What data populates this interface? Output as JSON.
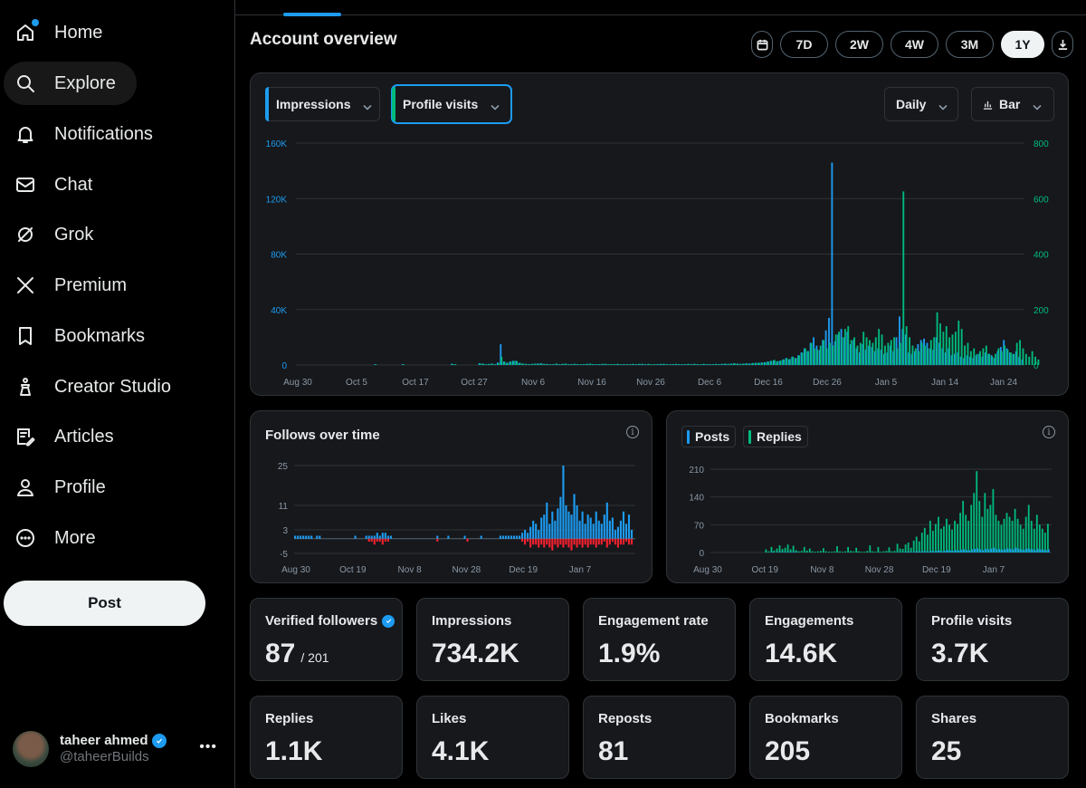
{
  "sidebar": {
    "items": [
      {
        "label": "Home",
        "icon": "home-icon"
      },
      {
        "label": "Explore",
        "icon": "search-icon"
      },
      {
        "label": "Notifications",
        "icon": "bell-icon"
      },
      {
        "label": "Chat",
        "icon": "mail-icon"
      },
      {
        "label": "Grok",
        "icon": "grok-icon"
      },
      {
        "label": "Premium",
        "icon": "x-logo-icon"
      },
      {
        "label": "Bookmarks",
        "icon": "bookmark-icon"
      },
      {
        "label": "Creator Studio",
        "icon": "creator-studio-icon"
      },
      {
        "label": "Articles",
        "icon": "article-icon"
      },
      {
        "label": "Profile",
        "icon": "person-icon"
      },
      {
        "label": "More",
        "icon": "more-circle-icon"
      }
    ],
    "post_label": "Post",
    "account": {
      "name": "taheer ahmed",
      "handle": "@taheerBuilds"
    }
  },
  "main": {
    "title": "Account overview",
    "ranges": [
      "7D",
      "2W",
      "4W",
      "3M",
      "1Y"
    ],
    "active_range": "1Y",
    "selectors": {
      "metric1": "Impressions",
      "metric2": "Profile visits",
      "interval": "Daily",
      "chart_type": "Bar"
    },
    "follows_title": "Follows over time",
    "posts_legend": {
      "posts": "Posts",
      "replies": "Replies"
    },
    "info_glyph": "i",
    "stats": [
      {
        "label": "Verified followers",
        "value": "87",
        "sub": "/ 201",
        "verified": true
      },
      {
        "label": "Impressions",
        "value": "734.2K"
      },
      {
        "label": "Engagement rate",
        "value": "1.9%"
      },
      {
        "label": "Engagements",
        "value": "14.6K"
      },
      {
        "label": "Profile visits",
        "value": "3.7K"
      },
      {
        "label": "Replies",
        "value": "1.1K"
      },
      {
        "label": "Likes",
        "value": "4.1K"
      },
      {
        "label": "Reposts",
        "value": "81"
      },
      {
        "label": "Bookmarks",
        "value": "205"
      },
      {
        "label": "Shares",
        "value": "25"
      }
    ]
  },
  "colors": {
    "accent_blue": "#1d9bf0",
    "accent_green": "#00ba7c",
    "negative_red": "#f4212e",
    "card_bg": "#16181c",
    "border": "#2f3336"
  },
  "chart_data": [
    {
      "id": "main",
      "type": "bar",
      "title": "",
      "x_tick_labels": [
        "Aug 30",
        "Oct 5",
        "Oct 17",
        "Oct 27",
        "Nov 6",
        "Nov 16",
        "Nov 26",
        "Dec 6",
        "Dec 16",
        "Dec 26",
        "Jan 5",
        "Jan 14",
        "Jan 24"
      ],
      "y_left_ticks": [
        "0",
        "40K",
        "80K",
        "120K",
        "160K"
      ],
      "y_left_range": [
        0,
        160000
      ],
      "y_right_ticks": [
        "0",
        "200",
        "400",
        "600",
        "800"
      ],
      "y_right_range": [
        0,
        800
      ],
      "series": [
        {
          "name": "Impressions",
          "axis": "left",
          "color": "#1d9bf0",
          "values": [
            0,
            0,
            0,
            0,
            0,
            0,
            0,
            0,
            0,
            0,
            0,
            0,
            0,
            0,
            0,
            0,
            0,
            0,
            0,
            0,
            0,
            0,
            0,
            0,
            500,
            0,
            0,
            0,
            0,
            0,
            0,
            0,
            0,
            600,
            0,
            0,
            0,
            0,
            0,
            0,
            0,
            0,
            0,
            0,
            0,
            0,
            0,
            0,
            0,
            900,
            500,
            0,
            0,
            0,
            0,
            0,
            0,
            0,
            1200,
            900,
            600,
            700,
            900,
            600,
            1800,
            15000,
            2500,
            1500,
            2500,
            3000,
            3000,
            1500,
            1000,
            800,
            600,
            700,
            900,
            1000,
            1200,
            800,
            700,
            600,
            500,
            900,
            600,
            700,
            900,
            500,
            600,
            800,
            600,
            500,
            600,
            700,
            900,
            600,
            500,
            600,
            700,
            800,
            500,
            600,
            600,
            700,
            500,
            600,
            600,
            500,
            700,
            600,
            700,
            800,
            600,
            700,
            500,
            600,
            600,
            800,
            700,
            600,
            500,
            600,
            700,
            600,
            500,
            600,
            700,
            600,
            800,
            600,
            500,
            700,
            600,
            600,
            500,
            700,
            600,
            800,
            900,
            700,
            1000,
            1200,
            1000,
            800,
            900,
            1200,
            1000,
            1400,
            1500,
            1600,
            1800,
            2000,
            2500,
            3000,
            3500,
            2500,
            3000,
            4000,
            5000,
            4000,
            6000,
            5000,
            7000,
            9000,
            12000,
            10000,
            16000,
            20000,
            14000,
            11000,
            18000,
            25000,
            34000,
            146000,
            17000,
            22000,
            26000,
            20000,
            24000,
            15000,
            18000,
            12000,
            9000,
            15000,
            11000,
            14000,
            13000,
            10000,
            12000,
            11000,
            8000,
            9000,
            14000,
            10000,
            20000,
            35000,
            26000,
            22000,
            9000,
            8000,
            10000,
            15000,
            18000,
            19000,
            16000,
            12000,
            11000,
            20000,
            16000,
            12000,
            9000,
            12000,
            7000,
            8000,
            9000,
            6000,
            5000,
            7000,
            6000,
            5000,
            7000,
            8000,
            6000,
            9000,
            8000,
            7000,
            5000,
            10000,
            13000,
            18000,
            12000,
            9000,
            8000,
            10000,
            6000,
            4000
          ]
        },
        {
          "name": "Profile visits",
          "axis": "right",
          "color": "#00ba7c",
          "values": [
            0,
            0,
            0,
            0,
            0,
            0,
            0,
            0,
            0,
            0,
            0,
            0,
            0,
            0,
            0,
            0,
            0,
            0,
            0,
            0,
            0,
            0,
            0,
            0,
            3,
            0,
            0,
            0,
            0,
            0,
            0,
            0,
            0,
            3,
            0,
            0,
            0,
            0,
            0,
            0,
            0,
            0,
            0,
            0,
            0,
            0,
            0,
            0,
            0,
            4,
            3,
            0,
            0,
            0,
            0,
            0,
            0,
            0,
            6,
            5,
            3,
            4,
            5,
            3,
            8,
            30,
            12,
            8,
            12,
            15,
            14,
            8,
            5,
            4,
            3,
            4,
            5,
            5,
            6,
            4,
            3,
            3,
            3,
            5,
            3,
            4,
            5,
            3,
            3,
            4,
            3,
            3,
            3,
            4,
            5,
            3,
            3,
            3,
            4,
            4,
            3,
            3,
            3,
            4,
            3,
            3,
            3,
            3,
            4,
            3,
            4,
            4,
            3,
            4,
            3,
            3,
            3,
            4,
            4,
            3,
            3,
            3,
            4,
            3,
            3,
            3,
            4,
            3,
            4,
            3,
            3,
            4,
            3,
            3,
            3,
            4,
            3,
            4,
            5,
            4,
            5,
            6,
            5,
            4,
            5,
            6,
            5,
            7,
            8,
            8,
            9,
            10,
            12,
            15,
            18,
            14,
            16,
            20,
            25,
            22,
            30,
            25,
            35,
            45,
            60,
            50,
            80,
            60,
            55,
            70,
            90,
            60,
            80,
            70,
            110,
            120,
            100,
            130,
            140,
            90,
            100,
            70,
            80,
            120,
            100,
            90,
            80,
            100,
            130,
            110,
            70,
            80,
            90,
            100,
            60,
            80,
            626,
            140,
            100,
            70,
            60,
            50,
            80,
            70,
            60,
            90,
            100,
            190,
            150,
            120,
            140,
            100,
            110,
            120,
            160,
            130,
            70,
            80,
            50,
            60,
            40,
            50,
            60,
            70,
            40,
            30,
            40,
            60,
            50,
            70,
            55,
            45,
            40,
            80,
            90,
            60,
            40,
            30,
            50,
            30,
            20
          ]
        }
      ]
    },
    {
      "id": "follows",
      "type": "bar",
      "title": "Follows over time",
      "x_tick_labels": [
        "Aug 30",
        "Oct 19",
        "Nov 8",
        "Nov 28",
        "Dec 19",
        "Jan 7"
      ],
      "y_ticks": [
        "-5",
        "3",
        "11",
        "25"
      ],
      "y_range": [
        -5,
        25
      ],
      "series": [
        {
          "name": "Follows",
          "color": "#1d9bf0",
          "values": [
            1,
            1,
            1,
            1,
            1,
            1,
            1,
            0,
            1,
            1,
            0,
            0,
            0,
            0,
            0,
            0,
            0,
            0,
            0,
            0,
            0,
            0,
            1,
            0,
            0,
            0,
            1,
            1,
            1,
            1,
            2,
            1,
            2,
            2,
            1,
            1,
            0,
            0,
            0,
            0,
            0,
            0,
            0,
            0,
            0,
            0,
            0,
            0,
            0,
            0,
            0,
            0,
            1,
            0,
            0,
            0,
            1,
            0,
            0,
            0,
            0,
            0,
            1,
            0,
            0,
            0,
            0,
            0,
            1,
            0,
            0,
            0,
            0,
            0,
            0,
            1,
            1,
            1,
            1,
            1,
            1,
            1,
            1,
            2,
            3,
            2,
            4,
            6,
            5,
            3,
            7,
            8,
            12,
            5,
            9,
            6,
            10,
            14,
            26,
            11,
            9,
            8,
            15,
            11,
            6,
            9,
            5,
            8,
            7,
            5,
            9,
            6,
            5,
            8,
            12,
            6,
            7,
            3,
            4,
            6,
            9,
            5,
            8,
            3
          ]
        },
        {
          "name": "Unfollows",
          "color": "#f4212e",
          "values": [
            0,
            0,
            0,
            0,
            0,
            0,
            0,
            0,
            0,
            0,
            0,
            0,
            0,
            0,
            0,
            0,
            0,
            0,
            0,
            0,
            0,
            0,
            0,
            0,
            0,
            0,
            0,
            -1,
            -1,
            -2,
            -1,
            -1,
            -2,
            -1,
            -1,
            0,
            0,
            0,
            0,
            0,
            0,
            0,
            0,
            0,
            0,
            0,
            0,
            0,
            0,
            0,
            0,
            0,
            -1,
            0,
            0,
            0,
            0,
            0,
            0,
            0,
            0,
            0,
            0,
            -1,
            0,
            0,
            0,
            0,
            0,
            0,
            0,
            0,
            0,
            0,
            0,
            0,
            0,
            0,
            0,
            0,
            0,
            0,
            0,
            -1,
            -2,
            -1,
            -3,
            -2,
            -2,
            -3,
            -2,
            -3,
            -2,
            -3,
            -4,
            -2,
            -3,
            -2,
            -3,
            -2,
            -3,
            -4,
            -2,
            -3,
            -2,
            -3,
            -2,
            -3,
            -2,
            -2,
            -3,
            -2,
            -2,
            -1,
            -3,
            -2,
            -1,
            -2,
            -3,
            -2,
            -2,
            -1,
            -2,
            -2
          ]
        }
      ]
    },
    {
      "id": "posts",
      "type": "bar",
      "title": "",
      "x_tick_labels": [
        "Aug 30",
        "Oct 19",
        "Nov 8",
        "Nov 28",
        "Dec 19",
        "Jan 7"
      ],
      "y_ticks": [
        "0",
        "70",
        "140",
        "210"
      ],
      "y_range": [
        0,
        210
      ],
      "series": [
        {
          "name": "Posts",
          "color": "#1d9bf0",
          "values": [
            0,
            0,
            0,
            0,
            0,
            0,
            0,
            0,
            0,
            0,
            0,
            0,
            0,
            0,
            0,
            0,
            0,
            0,
            0,
            0,
            1,
            0,
            2,
            0,
            1,
            2,
            1,
            1,
            2,
            1,
            2,
            1,
            0,
            0,
            1,
            0,
            1,
            0,
            0,
            0,
            0,
            1,
            0,
            0,
            0,
            0,
            1,
            0,
            0,
            0,
            1,
            0,
            0,
            1,
            0,
            0,
            0,
            0,
            1,
            0,
            0,
            1,
            0,
            0,
            0,
            1,
            0,
            0,
            1,
            1,
            1,
            2,
            2,
            1,
            2,
            3,
            2,
            3,
            3,
            2,
            4,
            3,
            4,
            5,
            3,
            4,
            6,
            5,
            4,
            6,
            5,
            7,
            8,
            6,
            5,
            8,
            9,
            10,
            8,
            6,
            9,
            8,
            10,
            12,
            8,
            9,
            7,
            8,
            10,
            9,
            8,
            12,
            9,
            8,
            7,
            10,
            9,
            8,
            6,
            9,
            8,
            7,
            6,
            8
          ]
        },
        {
          "name": "Replies",
          "color": "#00ba7c",
          "values": [
            0,
            0,
            0,
            0,
            0,
            0,
            0,
            0,
            0,
            0,
            0,
            0,
            0,
            0,
            0,
            0,
            0,
            0,
            0,
            0,
            8,
            3,
            14,
            5,
            10,
            18,
            9,
            12,
            20,
            8,
            17,
            6,
            3,
            4,
            14,
            5,
            10,
            3,
            2,
            3,
            4,
            11,
            3,
            2,
            2,
            3,
            16,
            3,
            2,
            3,
            14,
            4,
            3,
            12,
            3,
            2,
            2,
            4,
            18,
            3,
            2,
            14,
            2,
            3,
            4,
            13,
            3,
            4,
            22,
            10,
            9,
            20,
            25,
            12,
            30,
            40,
            28,
            50,
            62,
            45,
            80,
            55,
            72,
            90,
            60,
            66,
            85,
            70,
            58,
            80,
            72,
            100,
            130,
            95,
            80,
            120,
            150,
            205,
            130,
            90,
            150,
            110,
            120,
            160,
            95,
            80,
            70,
            85,
            100,
            90,
            80,
            110,
            85,
            70,
            60,
            90,
            120,
            80,
            60,
            95,
            70,
            60,
            50,
            72
          ]
        }
      ]
    }
  ]
}
